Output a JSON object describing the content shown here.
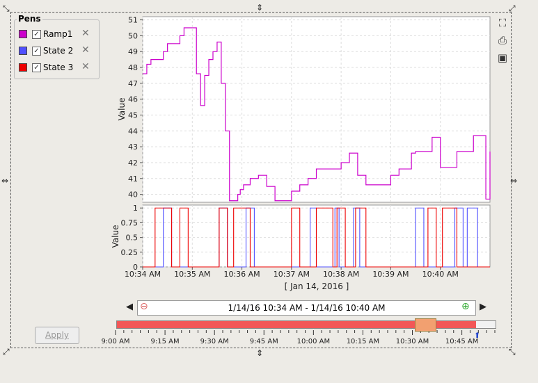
{
  "pens": {
    "title": "Pens",
    "items": [
      {
        "label": "Ramp1",
        "color": "#cc00cc",
        "checked": true
      },
      {
        "label": "State 2",
        "color": "#5050ff",
        "checked": true
      },
      {
        "label": "State 3",
        "color": "#ee0000",
        "checked": true
      }
    ]
  },
  "apply_label": "Apply",
  "range_label": "1/14/16 10:34 AM - 1/14/16 10:40 AM",
  "date_caption": "[ Jan 14, 2016 ]",
  "slider": {
    "ticks": [
      "9:00 AM",
      "9:15 AM",
      "9:30 AM",
      "9:45 AM",
      "10:00 AM",
      "10:15 AM",
      "10:30 AM",
      "10:45 AM"
    ],
    "colors": {
      "fill": "#f25757",
      "thumb": "#f2a070"
    }
  },
  "chart_data": [
    {
      "type": "line",
      "ylabel": "Value",
      "ylim": [
        39.5,
        51.2
      ],
      "y_ticks": [
        "40",
        "41",
        "42",
        "43",
        "44",
        "45",
        "46",
        "47",
        "48",
        "49",
        "50",
        "51"
      ],
      "grid": true,
      "series": [
        {
          "name": "Ramp1",
          "color": "#cc00cc",
          "x": [
            "10:34:00",
            "10:34:05",
            "10:34:10",
            "10:34:15",
            "10:34:20",
            "10:34:25",
            "10:34:30",
            "10:34:40",
            "10:34:45",
            "10:34:50",
            "10:34:55",
            "10:35:05",
            "10:35:10",
            "10:35:15",
            "10:35:20",
            "10:35:25",
            "10:35:30",
            "10:35:35",
            "10:35:40",
            "10:35:45",
            "10:35:50",
            "10:35:55",
            "10:35:58",
            "10:36:02",
            "10:36:05",
            "10:36:10",
            "10:36:20",
            "10:36:30",
            "10:36:40",
            "10:36:50",
            "10:37:00",
            "10:37:10",
            "10:37:20",
            "10:37:30",
            "10:37:40",
            "10:37:50",
            "10:38:00",
            "10:38:10",
            "10:38:20",
            "10:38:30",
            "10:38:40",
            "10:38:50",
            "10:39:00",
            "10:39:10",
            "10:39:20",
            "10:39:25",
            "10:39:30",
            "10:39:40",
            "10:39:50",
            "10:40:00",
            "10:40:10",
            "10:40:20",
            "10:40:30",
            "10:40:40",
            "10:40:50",
            "10:40:55",
            "10:41:00"
          ],
          "y": [
            47.6,
            48.2,
            48.5,
            48.5,
            48.5,
            49.0,
            49.5,
            49.5,
            50.0,
            50.5,
            50.5,
            47.6,
            45.6,
            47.5,
            48.5,
            49.0,
            49.6,
            47.0,
            44.0,
            39.6,
            39.6,
            40.0,
            40.3,
            40.6,
            40.6,
            41.0,
            41.2,
            40.5,
            39.6,
            39.6,
            40.2,
            40.6,
            41.0,
            41.6,
            41.6,
            41.6,
            42.0,
            42.6,
            41.2,
            40.6,
            40.6,
            40.6,
            41.2,
            41.6,
            41.6,
            42.6,
            42.7,
            42.7,
            43.6,
            41.7,
            41.7,
            42.7,
            42.7,
            43.7,
            43.7,
            39.7,
            42.7
          ]
        }
      ]
    },
    {
      "type": "line",
      "ylabel": "Value",
      "ylim": [
        0,
        1.05
      ],
      "y_ticks": [
        "0",
        "0.25",
        "0.5",
        "0.75",
        "1"
      ],
      "x_ticks": [
        "10:34 AM",
        "10:35 AM",
        "10:36 AM",
        "10:37 AM",
        "10:38 AM",
        "10:39 AM",
        "10:40 AM"
      ],
      "grid": true,
      "series": [
        {
          "name": "State 2",
          "color": "#5050ff",
          "steps": [
            [
              0,
              0
            ],
            [
              10,
              1
            ],
            [
              14,
              0
            ],
            [
              37,
              1
            ],
            [
              41,
              0
            ],
            [
              50,
              1
            ],
            [
              54,
              0
            ],
            [
              81,
              1
            ],
            [
              84,
              0
            ],
            [
              93,
              1
            ],
            [
              95,
              0
            ],
            [
              102,
              1
            ],
            [
              105,
              0
            ],
            [
              132,
              1
            ],
            [
              136,
              0
            ],
            [
              151,
              1
            ],
            [
              155,
              0
            ],
            [
              157,
              1
            ],
            [
              162,
              0
            ]
          ]
        },
        {
          "name": "State 3",
          "color": "#ee0000",
          "steps": [
            [
              0,
              0
            ],
            [
              6,
              1
            ],
            [
              14,
              0
            ],
            [
              18,
              1
            ],
            [
              22,
              0
            ],
            [
              37,
              1
            ],
            [
              41,
              0
            ],
            [
              44,
              1
            ],
            [
              52,
              0
            ],
            [
              72,
              1
            ],
            [
              76,
              0
            ],
            [
              84,
              1
            ],
            [
              92,
              0
            ],
            [
              94,
              1
            ],
            [
              98,
              0
            ],
            [
              103,
              1
            ],
            [
              108,
              0
            ],
            [
              138,
              1
            ],
            [
              142,
              0
            ],
            [
              145,
              1
            ],
            [
              152,
              0
            ]
          ]
        }
      ]
    }
  ]
}
